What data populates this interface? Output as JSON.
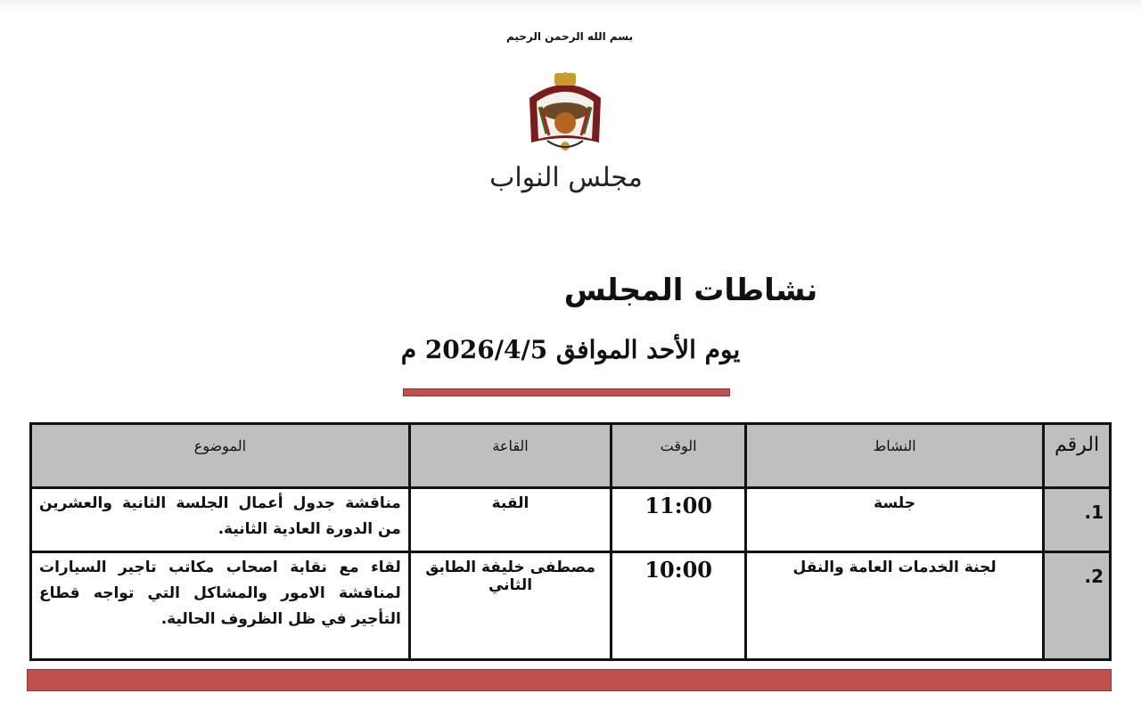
{
  "header": {
    "basmala": "بسم الله الرحمن الرحيم",
    "logo_text": "مجلس النواب",
    "title": "نشاطات المجلس",
    "date_line": "يوم الأحد الموافق 2026/4/5 م"
  },
  "table": {
    "columns": [
      "الرقم",
      "النشاط",
      "الوقت",
      "القاعة",
      "الموضوع"
    ],
    "rows": [
      {
        "num": "1.",
        "activity": "جلسة",
        "time": "11:00",
        "hall": "القبة",
        "subject": "مناقشة جدول أعمال الجلسة الثانية والعشرين من الدورة العادية الثانية."
      },
      {
        "num": "2.",
        "activity": "لجنة الخدمات العامة والنقل",
        "time": "10:00",
        "hall": "مصطفى خليفة الطابق الثاني",
        "subject": "لقاء مع نقابة اصحاب مكاتب تاجير السيارات لمناقشة الامور والمشاكل التي تواجه قطاع التأجير في ظل الظروف الحالية."
      }
    ]
  },
  "colors": {
    "accent_red": "#c0504d",
    "header_gray": "#bfbfbf"
  }
}
